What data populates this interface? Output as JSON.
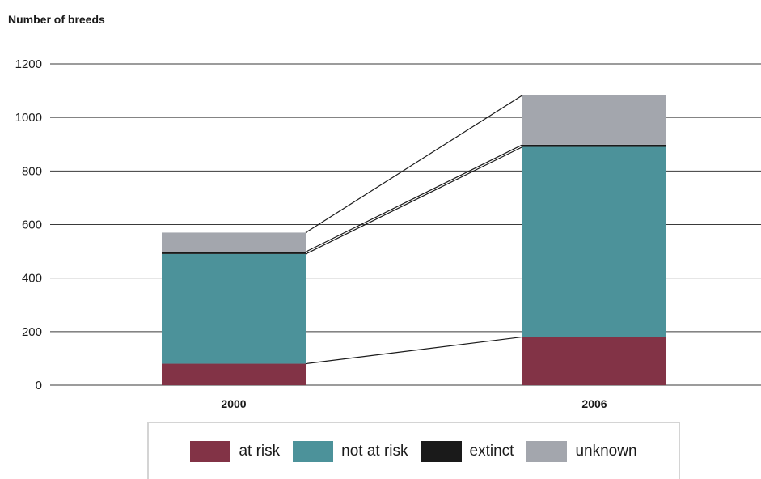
{
  "chart_data": {
    "type": "bar",
    "stacked": true,
    "ylabel": "Number of breeds",
    "categories": [
      "2000",
      "2006"
    ],
    "ylim": [
      0,
      1200
    ],
    "yticks": [
      0,
      200,
      400,
      600,
      800,
      1000,
      1200
    ],
    "grid": true,
    "legend_position": "bottom",
    "series": [
      {
        "name": "at risk",
        "color": "#823346",
        "values": [
          80,
          180
        ]
      },
      {
        "name": "not at risk",
        "color": "#4c929a",
        "values": [
          410,
          710
        ]
      },
      {
        "name": "extinct",
        "color": "#1a1a1a",
        "values": [
          8,
          8
        ]
      },
      {
        "name": "unknown",
        "color": "#a3a6ad",
        "values": [
          72,
          185
        ]
      }
    ]
  }
}
